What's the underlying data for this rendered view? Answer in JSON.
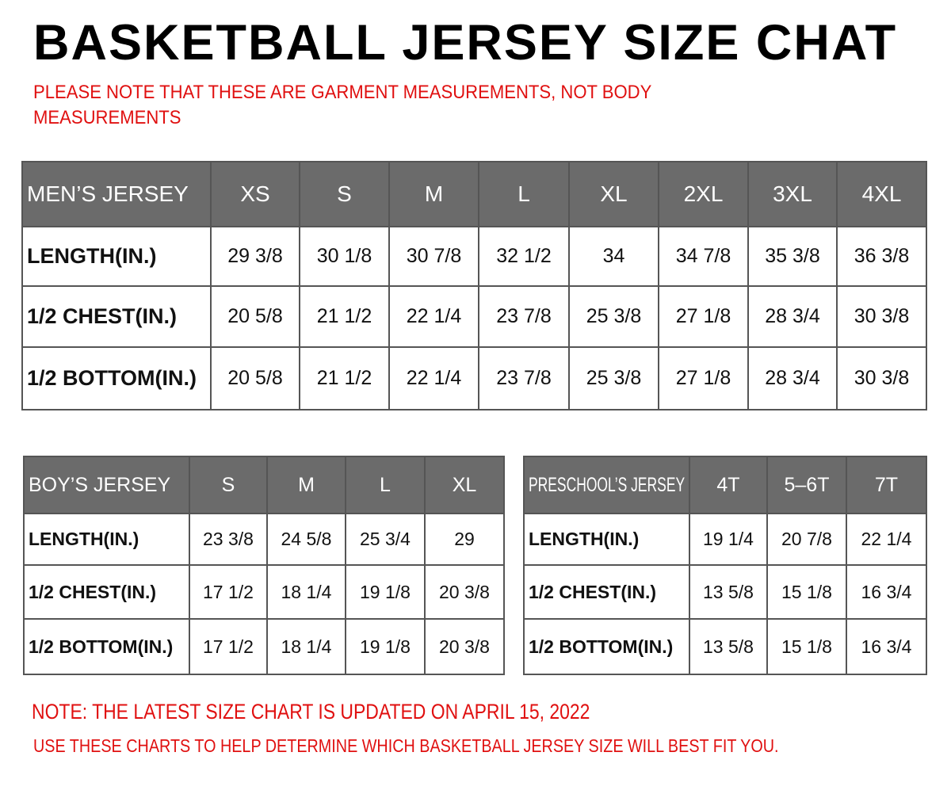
{
  "title": "BASKETBALL JERSEY SIZE CHAT",
  "note_line1": "PLEASE NOTE THAT THESE ARE GARMENT MEASUREMENTS, NOT BODY",
  "note_line2": "MEASUREMENTS",
  "mens": {
    "header": [
      "MEN’S JERSEY",
      "XS",
      "S",
      "M",
      "L",
      "XL",
      "2XL",
      "3XL",
      "4XL"
    ],
    "rows": [
      [
        "LENGTH(IN.)",
        "29  3/8",
        "30  1/8",
        "30  7/8",
        "32  1/2",
        "34",
        "34  7/8",
        "35  3/8",
        "36  3/8"
      ],
      [
        "1/2  CHEST(IN.)",
        "20  5/8",
        "21  1/2",
        "22  1/4",
        "23  7/8",
        "25  3/8",
        "27  1/8",
        "28  3/4",
        "30  3/8"
      ],
      [
        "1/2  BOTTOM(IN.)",
        "20  5/8",
        "21  1/2",
        "22  1/4",
        "23  7/8",
        "25  3/8",
        "27  1/8",
        "28  3/4",
        "30  3/8"
      ]
    ]
  },
  "boys": {
    "header": [
      "BOY’S JERSEY",
      "S",
      "M",
      "L",
      "XL"
    ],
    "rows": [
      [
        "LENGTH(IN.)",
        "23  3/8",
        "24  5/8",
        "25  3/4",
        "29"
      ],
      [
        "1/2  CHEST(IN.)",
        "17  1/2",
        "18  1/4",
        "19  1/8",
        "20  3/8"
      ],
      [
        "1/2  BOTTOM(IN.)",
        "17  1/2",
        "18  1/4",
        "19  1/8",
        "20  3/8"
      ]
    ]
  },
  "preschool": {
    "header": [
      "PRESCHOOL’S JERSEY",
      "4T",
      "5–6T",
      "7T"
    ],
    "rows": [
      [
        "LENGTH(IN.)",
        "19  1/4",
        "20  7/8",
        "22  1/4"
      ],
      [
        "1/2  CHEST(IN.)",
        "13  5/8",
        "15  1/8",
        "16  3/4"
      ],
      [
        "1/2  BOTTOM(IN.)",
        "13  5/8",
        "15  1/8",
        "16  3/4"
      ]
    ]
  },
  "footer_note1": "NOTE: THE LATEST SIZE CHART IS UPDATED ON APRIL 15, 2022",
  "footer_note2": "USE THESE CHARTS TO HELP DETERMINE WHICH  BASKETBALL JERSEY  SIZE WILL BEST FIT YOU.",
  "colors": {
    "header_bg": "#6b6b6b",
    "note_red": "#e01010"
  }
}
